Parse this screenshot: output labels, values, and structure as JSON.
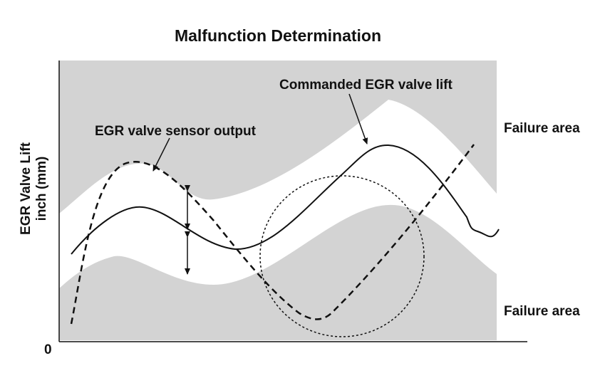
{
  "title": "Malfunction Determination",
  "y_axis": {
    "label_line1": "EGR Valve Lift",
    "label_line2": "inch (mm)",
    "origin_label": "0"
  },
  "annotations": {
    "commanded": "Commanded EGR valve lift",
    "sensor": "EGR valve sensor output"
  },
  "regions": {
    "upper": "Failure area",
    "lower": "Failure area"
  }
}
